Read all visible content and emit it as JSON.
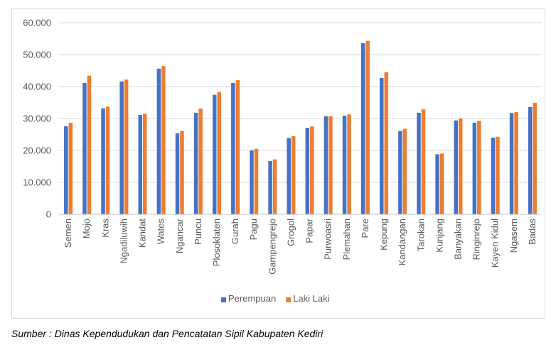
{
  "chart_data": {
    "type": "bar",
    "categories": [
      "Semen",
      "Mojo",
      "Kras",
      "Ngadiluwih",
      "Kandat",
      "Wates",
      "Ngancar",
      "Puncu",
      "Plosoklaten",
      "Gurah",
      "Pagu",
      "Gampengrejo",
      "Grogol",
      "Papar",
      "Purwoasri",
      "Plemahan",
      "Pare",
      "Kepung",
      "Kandangan",
      "Tarokan",
      "Kunjang",
      "Banyakan",
      "Ringinrejo",
      "Kayen Kidul",
      "Ngasem",
      "Badas"
    ],
    "series": [
      {
        "name": "Perempuan",
        "color": "#4472c4",
        "values": [
          27600,
          41100,
          33200,
          41600,
          31100,
          45600,
          25400,
          31800,
          37400,
          41100,
          20000,
          16700,
          23900,
          27100,
          30700,
          30900,
          53600,
          42700,
          26100,
          31800,
          18800,
          29400,
          28700,
          24000,
          31700,
          33600
        ]
      },
      {
        "name": "Laki Laki",
        "color": "#ed7d31",
        "values": [
          28700,
          43400,
          33700,
          42200,
          31500,
          46400,
          26100,
          33100,
          38300,
          42000,
          20500,
          17200,
          24500,
          27500,
          30700,
          31300,
          54300,
          44500,
          26800,
          32900,
          19000,
          30000,
          29300,
          24300,
          32000,
          34900
        ]
      }
    ],
    "yticks": [
      "0",
      "10.000",
      "20.000",
      "30.000",
      "40.000",
      "50.000",
      "60.000"
    ],
    "ylim": [
      0,
      60000
    ],
    "grid": true,
    "legend_position": "bottom"
  },
  "source_note": "Sumber : Dinas Kependudukan dan Pencatatan Sipil Kabupaten Kediri"
}
